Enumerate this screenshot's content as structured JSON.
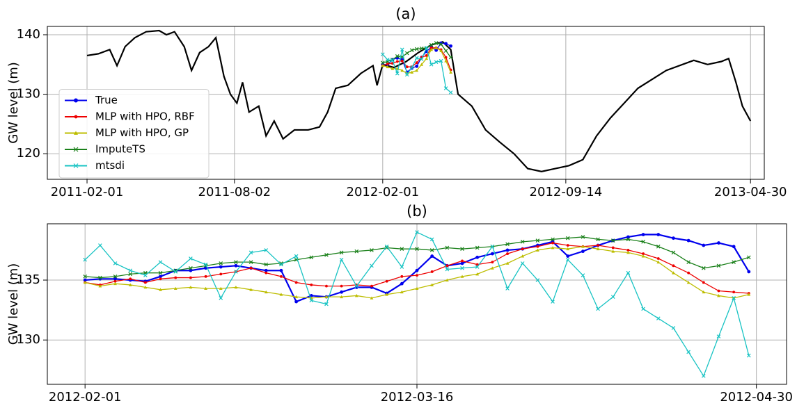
{
  "chart_data": [
    {
      "type": "line",
      "title": "(a)",
      "ylabel": "GW level (m)",
      "xlim": [
        "2010-12-14",
        "2013-05-17"
      ],
      "xticks": [
        "2011-02-01",
        "2011-08-02",
        "2012-02-01",
        "2012-09-14",
        "2013-04-30"
      ],
      "ylim": [
        115.7,
        141.4
      ],
      "yticks": [
        120,
        130,
        140
      ],
      "grid": true,
      "legend": "lower left",
      "series": [
        {
          "color": "#000000",
          "marker": "none",
          "x": [
            "2011-02-01",
            "2011-02-15",
            "2011-03-01",
            "2011-03-10",
            "2011-03-20",
            "2011-04-01",
            "2011-04-15",
            "2011-05-01",
            "2011-05-10",
            "2011-05-20",
            "2011-06-01",
            "2011-06-10",
            "2011-06-20",
            "2011-07-01",
            "2011-07-10",
            "2011-07-20",
            "2011-07-28",
            "2011-08-05",
            "2011-08-12",
            "2011-08-20",
            "2011-09-01",
            "2011-09-10",
            "2011-09-20",
            "2011-10-01",
            "2011-10-15",
            "2011-11-01",
            "2011-11-15",
            "2011-11-25",
            "2011-12-05",
            "2011-12-20",
            "2012-01-05",
            "2012-01-20",
            "2012-01-25",
            "2012-02-01",
            "2012-02-15",
            "2012-03-01",
            "2012-03-16",
            "2012-04-01",
            "2012-04-15",
            "2012-04-25",
            "2012-05-04",
            "2012-05-21",
            "2012-06-07",
            "2012-06-24",
            "2012-07-12",
            "2012-07-29",
            "2012-08-15",
            "2012-09-01",
            "2012-09-18",
            "2012-10-05",
            "2012-10-22",
            "2012-11-08",
            "2012-12-12",
            "2013-01-16",
            "2013-02-19",
            "2013-03-08",
            "2013-03-25",
            "2013-04-03",
            "2013-04-12",
            "2013-04-20",
            "2013-04-30"
          ],
          "values": [
            136.5,
            136.8,
            137.5,
            134.8,
            138,
            139.5,
            140.5,
            140.7,
            140,
            140.5,
            138,
            134,
            137,
            138,
            139.5,
            133,
            130,
            128.5,
            132,
            127,
            128,
            123,
            125.5,
            122.5,
            124,
            124,
            124.5,
            127,
            131,
            131.5,
            133.5,
            134.8,
            131.5,
            135,
            134.5,
            135.5,
            137,
            138.3,
            138.8,
            137.5,
            130,
            128,
            124,
            122,
            120,
            117.5,
            117,
            117.5,
            118,
            119,
            123,
            126,
            131,
            134,
            135.7,
            135,
            135.5,
            136,
            132,
            128,
            125.5
          ]
        },
        {
          "name": "True",
          "color": "#0000ee",
          "marker": "o",
          "x": [
            "2012-02-01",
            "2012-02-07",
            "2012-02-13",
            "2012-02-19",
            "2012-02-25",
            "2012-03-02",
            "2012-03-08",
            "2012-03-14",
            "2012-03-20",
            "2012-03-26",
            "2012-04-01",
            "2012-04-07",
            "2012-04-13",
            "2012-04-19",
            "2012-04-25"
          ],
          "values": [
            135.0,
            135.0,
            135.8,
            136.1,
            135.8,
            133.7,
            134.4,
            134.7,
            136.2,
            137.2,
            137.9,
            137.4,
            138.6,
            138.5,
            138.1
          ]
        },
        {
          "name": "MLP with HPO, RBF",
          "color": "#ee0000",
          "marker": "*",
          "x": [
            "2012-02-01",
            "2012-02-07",
            "2012-02-13",
            "2012-02-19",
            "2012-02-25",
            "2012-03-02",
            "2012-03-08",
            "2012-03-14",
            "2012-03-20",
            "2012-03-26",
            "2012-04-01",
            "2012-04-07",
            "2012-04-13",
            "2012-04-19",
            "2012-04-25"
          ],
          "values": [
            134.8,
            135.1,
            135.2,
            135.5,
            135.6,
            134.6,
            134.6,
            135.3,
            136.2,
            136.5,
            137.8,
            137.8,
            137.5,
            136.2,
            134.1
          ]
        },
        {
          "name": "MLP with HPO, GP",
          "color": "#bdbd00",
          "marker": "^",
          "x": [
            "2012-02-01",
            "2012-02-07",
            "2012-02-13",
            "2012-02-19",
            "2012-02-25",
            "2012-03-02",
            "2012-03-08",
            "2012-03-14",
            "2012-03-20",
            "2012-03-26",
            "2012-04-01",
            "2012-04-07",
            "2012-04-13",
            "2012-04-19",
            "2012-04-25"
          ],
          "values": [
            134.8,
            134.6,
            134.3,
            134.3,
            134.0,
            133.5,
            133.7,
            134.0,
            135.0,
            136.0,
            137.5,
            137.8,
            137.3,
            135.6,
            133.7
          ]
        },
        {
          "name": "ImputeTS",
          "color": "#1a801a",
          "marker": "x",
          "x": [
            "2012-02-01",
            "2012-02-07",
            "2012-02-13",
            "2012-02-19",
            "2012-02-25",
            "2012-03-02",
            "2012-03-08",
            "2012-03-14",
            "2012-03-20",
            "2012-03-26",
            "2012-04-01",
            "2012-04-07",
            "2012-04-13",
            "2012-04-19",
            "2012-04-25"
          ],
          "values": [
            135.3,
            135.5,
            135.8,
            136.4,
            136.3,
            136.9,
            137.4,
            137.6,
            137.7,
            137.8,
            138.3,
            138.6,
            138.4,
            137.3,
            136.2
          ]
        },
        {
          "name": "mtsdi",
          "color": "#17c3c3",
          "marker": "x",
          "x": [
            "2012-02-01",
            "2012-02-07",
            "2012-02-13",
            "2012-02-19",
            "2012-02-25",
            "2012-03-02",
            "2012-03-08",
            "2012-03-14",
            "2012-03-20",
            "2012-03-26",
            "2012-04-01",
            "2012-04-07",
            "2012-04-13",
            "2012-04-19",
            "2012-04-25"
          ],
          "values": [
            136.7,
            135.8,
            135.7,
            133.5,
            137.5,
            133.3,
            134.5,
            136.1,
            135.9,
            137.8,
            135.0,
            135.4,
            135.6,
            131.0,
            130.3
          ]
        }
      ]
    },
    {
      "type": "line",
      "title": "(b)",
      "ylabel": "GW level (m)",
      "xlim": [
        "2012-01-27",
        "2012-05-04"
      ],
      "xticks": [
        "2012-02-01",
        "2012-03-16",
        "2012-04-30"
      ],
      "ylim": [
        126.3,
        139.7
      ],
      "yticks": [
        130,
        135
      ],
      "grid": true,
      "x": [
        "2012-02-01",
        "2012-02-03",
        "2012-02-05",
        "2012-02-07",
        "2012-02-09",
        "2012-02-11",
        "2012-02-13",
        "2012-02-15",
        "2012-02-17",
        "2012-02-19",
        "2012-02-21",
        "2012-02-23",
        "2012-02-25",
        "2012-02-27",
        "2012-02-29",
        "2012-03-02",
        "2012-03-04",
        "2012-03-06",
        "2012-03-08",
        "2012-03-10",
        "2012-03-12",
        "2012-03-14",
        "2012-03-16",
        "2012-03-18",
        "2012-03-20",
        "2012-03-22",
        "2012-03-24",
        "2012-03-26",
        "2012-03-28",
        "2012-03-30",
        "2012-04-01",
        "2012-04-03",
        "2012-04-05",
        "2012-04-07",
        "2012-04-09",
        "2012-04-11",
        "2012-04-13",
        "2012-04-15",
        "2012-04-17",
        "2012-04-19",
        "2012-04-21",
        "2012-04-23",
        "2012-04-25",
        "2012-04-27",
        "2012-04-29"
      ],
      "series": [
        {
          "color": "#0000ee",
          "marker": "o",
          "values": [
            135.0,
            135.1,
            135.1,
            135.0,
            134.9,
            135.3,
            135.8,
            135.8,
            136.0,
            136.1,
            136.2,
            136.0,
            135.8,
            135.8,
            133.2,
            133.7,
            133.6,
            134.0,
            134.4,
            134.4,
            133.9,
            134.7,
            135.8,
            137.0,
            136.2,
            136.4,
            136.9,
            137.2,
            137.5,
            137.6,
            137.9,
            138.2,
            137.0,
            137.4,
            137.9,
            138.3,
            138.6,
            138.8,
            138.8,
            138.5,
            138.3,
            137.9,
            138.1,
            137.8,
            135.7
          ]
        },
        {
          "color": "#ee0000",
          "marker": "*",
          "values": [
            134.8,
            134.6,
            134.9,
            135.1,
            134.8,
            135.1,
            135.2,
            135.2,
            135.3,
            135.5,
            135.7,
            136.0,
            135.6,
            135.3,
            134.8,
            134.6,
            134.5,
            134.5,
            134.6,
            134.5,
            134.9,
            135.3,
            135.4,
            135.7,
            136.2,
            136.6,
            136.3,
            136.5,
            137.2,
            137.6,
            137.8,
            138.1,
            137.9,
            137.8,
            137.9,
            137.7,
            137.5,
            137.2,
            136.8,
            136.2,
            135.6,
            134.8,
            134.1,
            134.0,
            133.9
          ]
        },
        {
          "color": "#bdbd00",
          "marker": "^",
          "values": [
            134.8,
            134.5,
            134.7,
            134.6,
            134.4,
            134.2,
            134.3,
            134.4,
            134.3,
            134.3,
            134.4,
            134.2,
            134.0,
            133.8,
            133.6,
            133.5,
            133.6,
            133.6,
            133.7,
            133.5,
            133.8,
            134.0,
            134.3,
            134.6,
            135.0,
            135.3,
            135.5,
            136.0,
            136.4,
            137.0,
            137.5,
            137.7,
            137.6,
            137.8,
            137.6,
            137.4,
            137.3,
            137.0,
            136.5,
            135.6,
            134.8,
            134.0,
            133.7,
            133.5,
            133.8
          ]
        },
        {
          "color": "#1a801a",
          "marker": "x",
          "values": [
            135.3,
            135.2,
            135.3,
            135.5,
            135.6,
            135.6,
            135.8,
            136.0,
            136.2,
            136.4,
            136.5,
            136.5,
            136.3,
            136.4,
            136.7,
            136.9,
            137.1,
            137.3,
            137.4,
            137.5,
            137.7,
            137.6,
            137.6,
            137.5,
            137.7,
            137.6,
            137.7,
            137.8,
            138.0,
            138.2,
            138.3,
            138.4,
            138.5,
            138.6,
            138.4,
            138.3,
            138.4,
            138.2,
            137.8,
            137.3,
            136.5,
            136.0,
            136.2,
            136.5,
            136.9
          ]
        },
        {
          "color": "#17c3c3",
          "marker": "x",
          "values": [
            136.7,
            137.9,
            136.4,
            135.8,
            135.4,
            136.5,
            135.7,
            136.8,
            136.3,
            133.5,
            135.7,
            137.3,
            137.5,
            136.3,
            137.0,
            133.3,
            133.0,
            136.7,
            134.5,
            136.2,
            137.8,
            136.1,
            139.0,
            138.4,
            135.9,
            136.0,
            136.1,
            137.8,
            134.3,
            136.4,
            135.0,
            133.2,
            136.7,
            135.4,
            132.6,
            133.6,
            135.6,
            132.6,
            131.8,
            131.0,
            129.0,
            127.0,
            130.3,
            133.5,
            128.7
          ]
        }
      ]
    }
  ]
}
